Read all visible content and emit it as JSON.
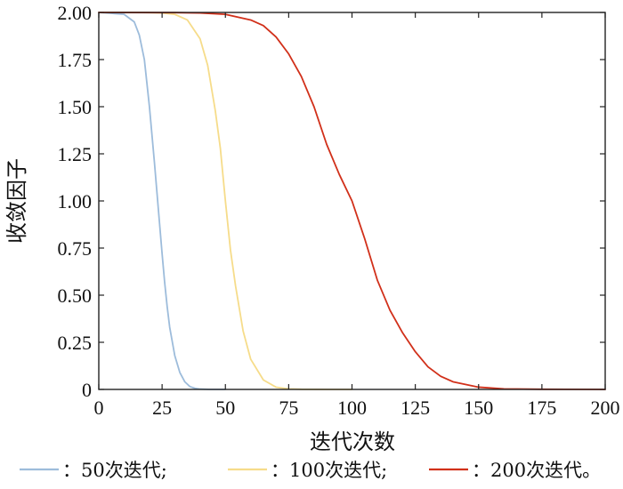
{
  "chart_data": {
    "type": "line",
    "title": "",
    "xlabel": "迭代次数",
    "ylabel": "收敛因子",
    "xlim": [
      0,
      200
    ],
    "ylim": [
      0,
      2
    ],
    "x_ticks": [
      0,
      25,
      50,
      75,
      100,
      125,
      150,
      175,
      200
    ],
    "y_ticks": [
      0,
      0.25,
      0.5,
      0.75,
      1.0,
      1.25,
      1.5,
      1.75,
      2.0
    ],
    "x_tick_labels": [
      "0",
      "25",
      "50",
      "75",
      "100",
      "125",
      "150",
      "175",
      "200"
    ],
    "y_tick_labels": [
      "0",
      "0.25",
      "0.50",
      "0.75",
      "1.00",
      "1.25",
      "1.50",
      "1.75",
      "2.00"
    ],
    "grid": false,
    "legend_position": "bottom",
    "series": [
      {
        "name": "50次迭代;",
        "legend_prefix": "：",
        "color": "#9dbcdb",
        "x": [
          0,
          10,
          14,
          16,
          18,
          20,
          22,
          23,
          24,
          25,
          26,
          27,
          28,
          30,
          32,
          34,
          36,
          38,
          40,
          44,
          50
        ],
        "y": [
          2.0,
          1.99,
          1.95,
          1.88,
          1.75,
          1.5,
          1.2,
          1.04,
          0.88,
          0.72,
          0.57,
          0.44,
          0.33,
          0.18,
          0.09,
          0.04,
          0.015,
          0.006,
          0.002,
          0.0,
          0.0
        ]
      },
      {
        "name": "100次迭代;",
        "legend_prefix": "：",
        "color": "#f6dc8a",
        "x": [
          0,
          15,
          20,
          25,
          30,
          35,
          40,
          43,
          46,
          48,
          50,
          52,
          54,
          57,
          60,
          65,
          70,
          75,
          80,
          90,
          100
        ],
        "y": [
          2.0,
          2.0,
          1.999,
          1.997,
          1.99,
          1.96,
          1.86,
          1.72,
          1.48,
          1.28,
          1.0,
          0.74,
          0.55,
          0.31,
          0.16,
          0.05,
          0.012,
          0.003,
          0.001,
          0.0,
          0.0
        ]
      },
      {
        "name": "200次迭代。",
        "legend_prefix": "：",
        "color": "#d1301a",
        "x": [
          0,
          30,
          40,
          50,
          60,
          65,
          70,
          75,
          80,
          85,
          90,
          95,
          100,
          105,
          110,
          115,
          120,
          125,
          130,
          135,
          140,
          150,
          160,
          175,
          200
        ],
        "y": [
          2.0,
          1.999,
          1.997,
          1.99,
          1.96,
          1.93,
          1.87,
          1.78,
          1.66,
          1.5,
          1.3,
          1.14,
          1.0,
          0.8,
          0.58,
          0.42,
          0.3,
          0.2,
          0.12,
          0.07,
          0.04,
          0.012,
          0.003,
          0.001,
          0.0
        ]
      }
    ]
  }
}
